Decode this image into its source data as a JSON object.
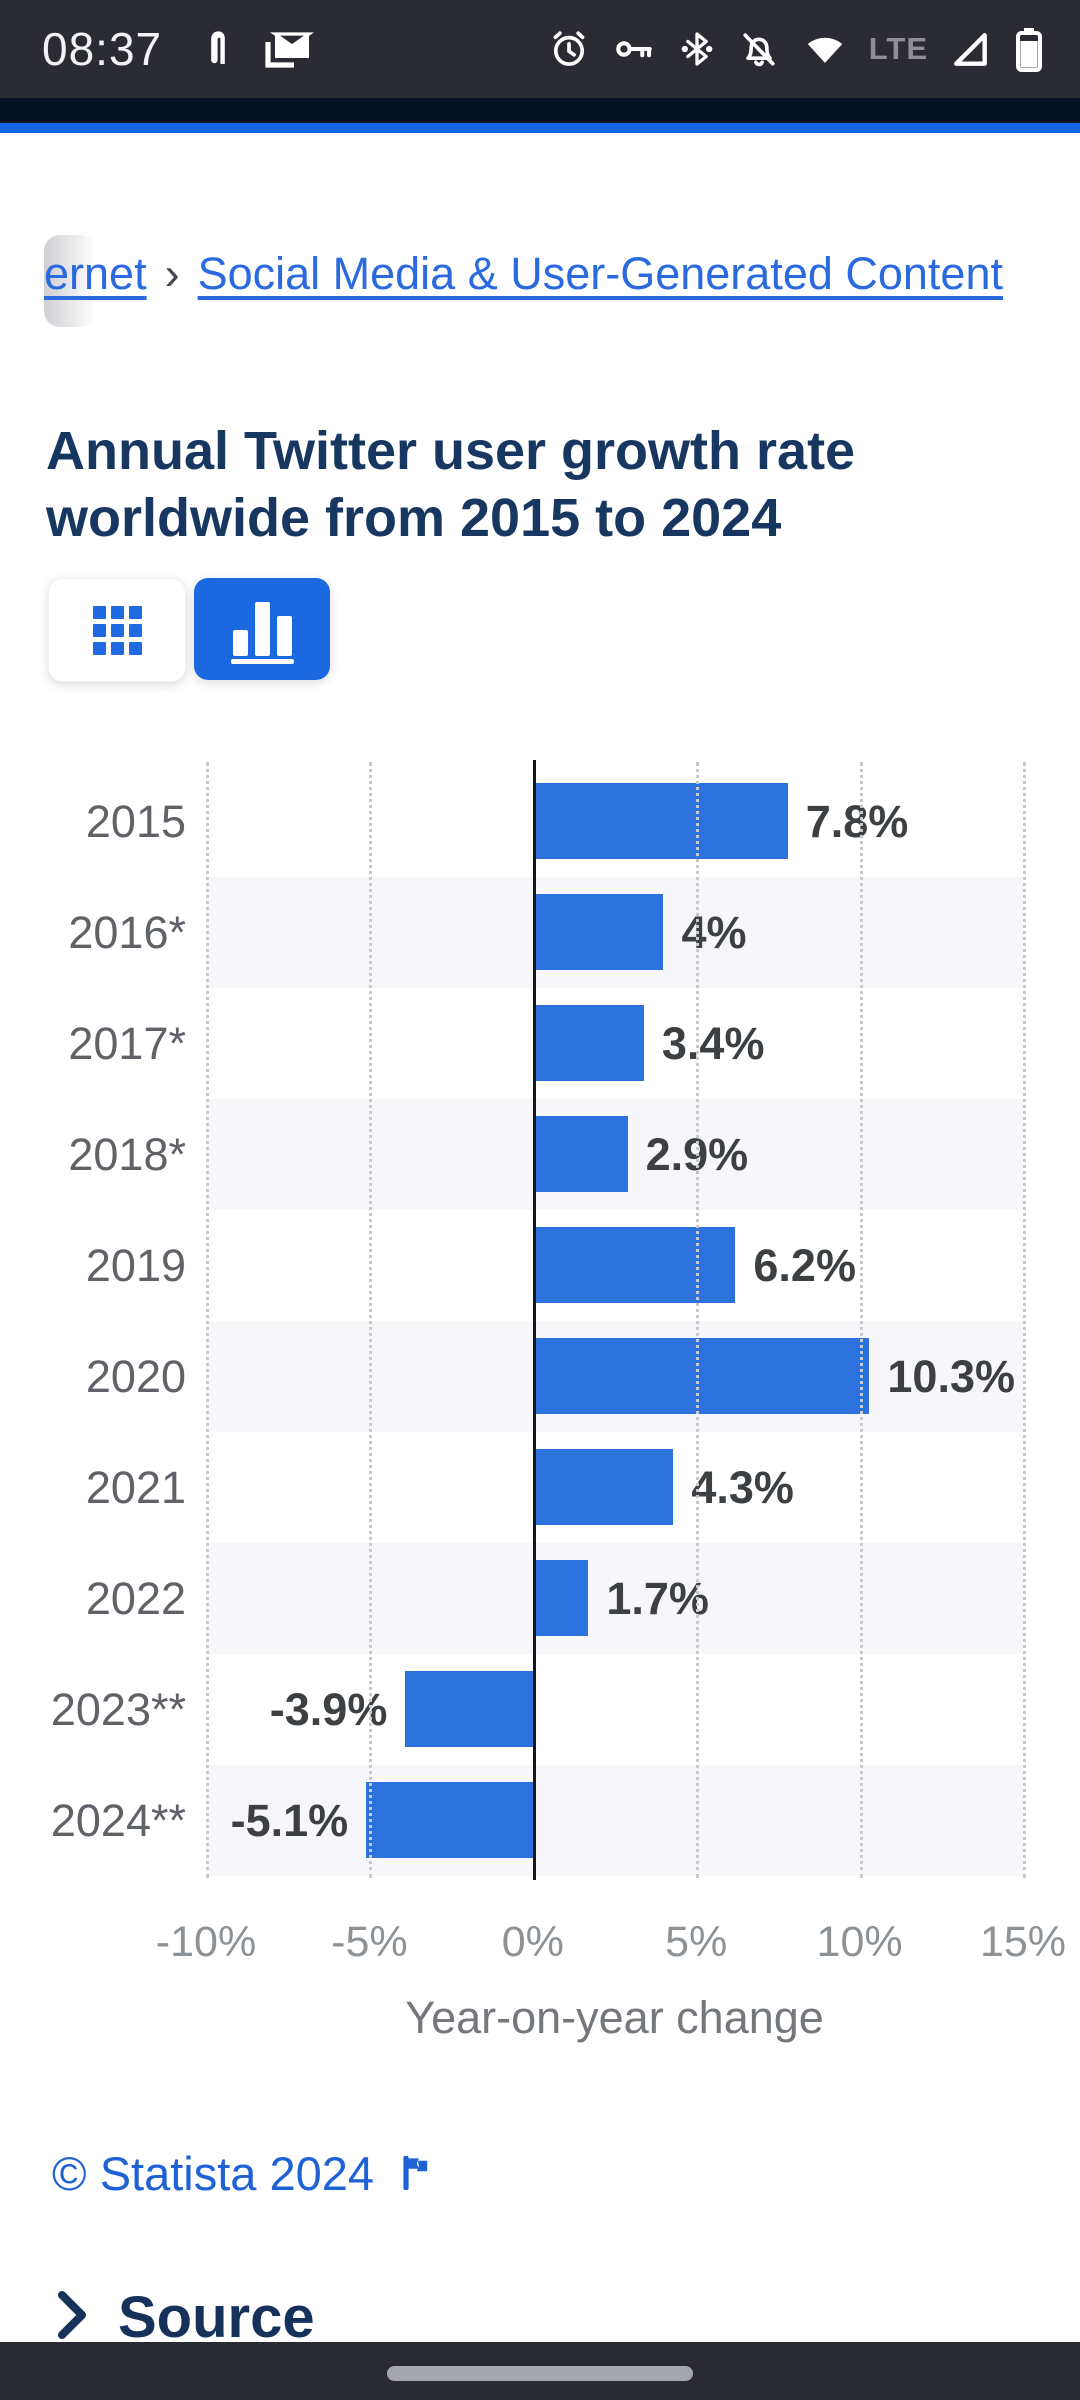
{
  "status_bar": {
    "time": "08:37",
    "left_icons": [
      "pin-notification-icon",
      "mail-icon"
    ],
    "right_icons": [
      "alarm-icon",
      "vpn-key-icon",
      "bluetooth-icon",
      "notifications-off-icon",
      "wifi-icon",
      "network-type-label",
      "signal-icon",
      "battery-icon"
    ],
    "network_label": "LTE"
  },
  "breadcrumb": {
    "truncated_item": "ernet",
    "separator": "›",
    "current_item": "Social Media & User-Generated Content"
  },
  "page": {
    "title": "Annual Twitter user growth rate worldwide from 2015 to 2024"
  },
  "toolbar": {
    "buttons": [
      "table-view",
      "chart-view"
    ],
    "active_button": "chart-view",
    "active_color": "#1b69e0"
  },
  "chart_data": {
    "type": "bar",
    "orientation": "horizontal",
    "categories": [
      "2015",
      "2016*",
      "2017*",
      "2018*",
      "2019",
      "2020",
      "2021",
      "2022",
      "2023**",
      "2024**"
    ],
    "values": [
      7.8,
      4,
      3.4,
      2.9,
      6.2,
      10.3,
      4.3,
      1.7,
      -3.9,
      -5.1
    ],
    "value_labels": [
      "7.8%",
      "4%",
      "3.4%",
      "2.9%",
      "6.2%",
      "10.3%",
      "4.3%",
      "1.7%",
      "-3.9%",
      "-5.1%"
    ],
    "xlabel": "Year-on-year change",
    "x_ticks": [
      "-10%",
      "-5%",
      "0%",
      "5%",
      "10%",
      "15%"
    ],
    "x_tick_values": [
      -10,
      -5,
      0,
      5,
      10,
      15
    ],
    "xlim": [
      -10,
      15
    ],
    "bar_color": "#2b72dc",
    "stripe_color": "#f7f7f9",
    "grid": "dotted-vertical",
    "zero_line": true,
    "legend": "none"
  },
  "footer": {
    "copyright": "© Statista 2024",
    "source_label": "Source"
  }
}
